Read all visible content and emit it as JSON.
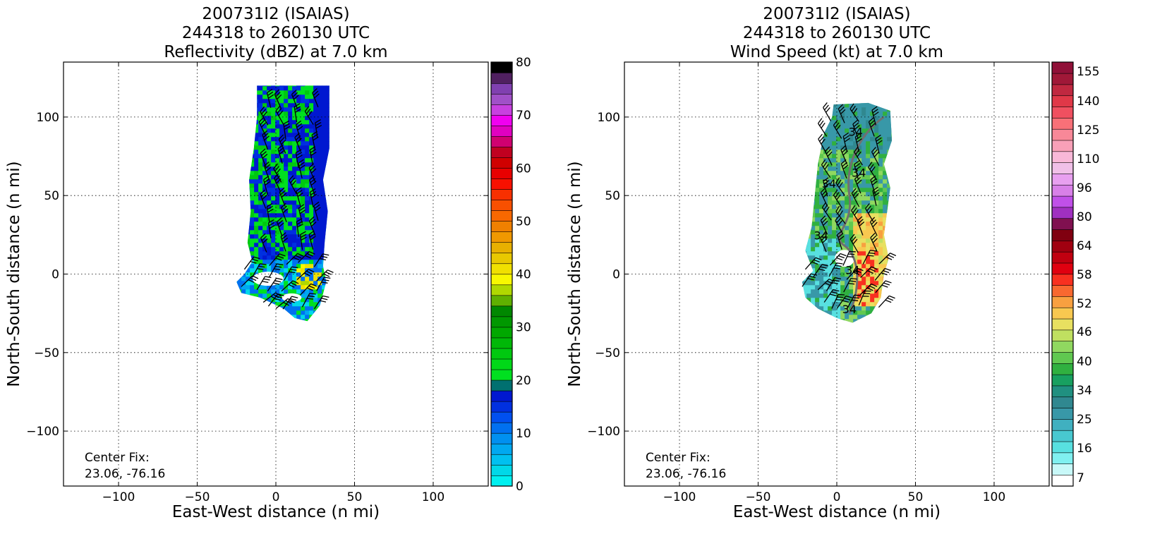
{
  "chart_data": [
    {
      "type": "heatmap",
      "title_lines": [
        "200731I2 (ISAIAS)",
        "244318 to 260130 UTC",
        "Reflectivity (dBZ) at 7.0 km"
      ],
      "xlabel": "East-West distance (n mi)",
      "ylabel": "North-South distance (n mi)",
      "xlim": [
        -135,
        135
      ],
      "ylim": [
        -135,
        135
      ],
      "xticks": [
        -100,
        -50,
        0,
        50,
        100
      ],
      "yticks": [
        -100,
        -50,
        0,
        50,
        100
      ],
      "xtick_labels": [
        "−100",
        "−50",
        "0",
        "50",
        "100"
      ],
      "ytick_labels": [
        "−100",
        "−50",
        "0",
        "50",
        "100"
      ],
      "grid": true,
      "annotation_lines": [
        "Center Fix:",
        "23.06, -76.16"
      ],
      "colorbar": {
        "min": 0,
        "max": 80,
        "levels": 32,
        "tick_values": [
          0,
          10,
          20,
          30,
          40,
          50,
          60,
          70,
          80
        ],
        "tick_labels": [
          "0",
          "10",
          "20",
          "30",
          "40",
          "50",
          "60",
          "70",
          "80"
        ],
        "colors": [
          "#00f0f0",
          "#00d8e8",
          "#00c0f0",
          "#00a8f0",
          "#0090f0",
          "#0070f0",
          "#0050f0",
          "#0030e0",
          "#0018d0",
          "#007070",
          "#00e020",
          "#00d818",
          "#00c810",
          "#00b808",
          "#00a800",
          "#009800",
          "#008800",
          "#60b000",
          "#b0d800",
          "#f8f800",
          "#f0e000",
          "#e8c800",
          "#e8b000",
          "#f09800",
          "#f08000",
          "#f86800",
          "#f85000",
          "#f83000",
          "#f81000",
          "#e80000",
          "#d00000",
          "#c00020",
          "#d00070",
          "#e000c0",
          "#f000f0",
          "#c840e0",
          "#a050c8",
          "#8040b0",
          "#502060",
          "#000000"
        ]
      },
      "echo_region": {
        "dominant_range_dbz": [
          10,
          28
        ],
        "max_dbz_approx": 38,
        "x_extent": [
          -25,
          35
        ],
        "y_extent": [
          -30,
          122
        ]
      },
      "wind_barbs_present": true
    },
    {
      "type": "heatmap",
      "title_lines": [
        "200731I2 (ISAIAS)",
        "244318 to 260130 UTC",
        "Wind Speed (kt) at 7.0 km"
      ],
      "xlabel": "East-West distance (n mi)",
      "ylabel": "North-South distance (n mi)",
      "xlim": [
        -135,
        135
      ],
      "ylim": [
        -135,
        135
      ],
      "xticks": [
        -100,
        -50,
        0,
        50,
        100
      ],
      "yticks": [
        -100,
        -50,
        0,
        50,
        100
      ],
      "xtick_labels": [
        "−100",
        "−50",
        "0",
        "50",
        "100"
      ],
      "ytick_labels": [
        "−100",
        "−50",
        "0",
        "50",
        "100"
      ],
      "grid": true,
      "annotation_lines": [
        "Center Fix:",
        "23.06, -76.16"
      ],
      "colorbar": {
        "levels": 26,
        "tick_labels": [
          "7",
          "16",
          "25",
          "34",
          "40",
          "46",
          "52",
          "58",
          "64",
          "80",
          "96",
          "110",
          "125",
          "140",
          "155"
        ],
        "tick_level_index": [
          0,
          3,
          6,
          9,
          11,
          13,
          15,
          17,
          19,
          21,
          23,
          25,
          27,
          29,
          31
        ],
        "colors": [
          "#ffffff",
          "#c8f8f8",
          "#80f0f0",
          "#58e0e0",
          "#48c8d0",
          "#40b0c0",
          "#3898a8",
          "#308890",
          "#209080",
          "#18a060",
          "#30b040",
          "#60c850",
          "#90d860",
          "#c0e060",
          "#e8e060",
          "#f8c850",
          "#f8a040",
          "#f86830",
          "#f83020",
          "#e00010",
          "#c00010",
          "#a00010",
          "#800010",
          "#801050",
          "#a030c0",
          "#c050e8",
          "#d880e8",
          "#e8a0f0",
          "#f0c0e8",
          "#f8b8d8",
          "#f8a0b8",
          "#f88898",
          "#f87078",
          "#f05060",
          "#e03848",
          "#c02840",
          "#a01838",
          "#901038"
        ]
      },
      "wind_region": {
        "dominant_range_kt": [
          20,
          50
        ],
        "max_kt_approx": 58,
        "contour_label": "34",
        "x_extent": [
          -20,
          35
        ],
        "y_extent": [
          -30,
          108
        ]
      },
      "wind_barbs_present": true
    }
  ]
}
